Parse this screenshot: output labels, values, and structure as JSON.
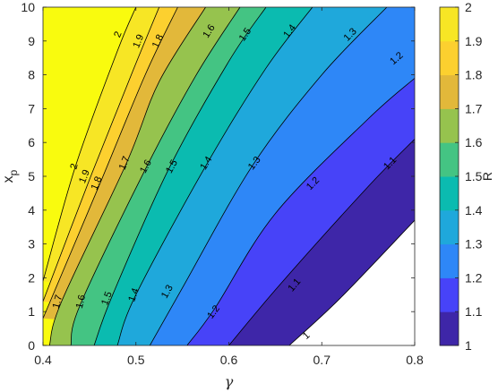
{
  "chart_data": {
    "type": "heatmap",
    "subtype": "filled-contour",
    "xlabel": "γ",
    "ylabel": "x_p",
    "colorbar_label": "R",
    "xlim": [
      0.4,
      0.8
    ],
    "ylim": [
      0,
      10
    ],
    "xticks": [
      "0.4",
      "0.5",
      "0.6",
      "0.7",
      "0.8"
    ],
    "yticks": [
      "0",
      "1",
      "2",
      "3",
      "4",
      "5",
      "6",
      "7",
      "8",
      "9",
      "10"
    ],
    "colorbar_ticks": [
      "1",
      "1.1",
      "1.2",
      "1.3",
      "1.4",
      "1.5",
      "1.6",
      "1.7",
      "1.8",
      "1.9",
      "2"
    ],
    "clim": [
      1,
      2
    ],
    "levels": [
      1,
      1.1,
      1.2,
      1.3,
      1.4,
      1.5,
      1.6,
      1.7,
      1.8,
      1.9,
      2
    ],
    "level_labels": [
      "1",
      "1.1",
      "1.2",
      "1.3",
      "1.4",
      "1.5",
      "1.6",
      "1.7",
      "1.8",
      "1.9",
      "2"
    ],
    "colormap": "parula",
    "colors": [
      "#3e26a8",
      "#4743f8",
      "#2e87f7",
      "#1fa8db",
      "#0bbbb0",
      "#44c483",
      "#96c34e",
      "#e2b83a",
      "#fcd02f",
      "#f7e625",
      "#f9fb0e"
    ],
    "contour_lines": [
      {
        "level": "2",
        "points": [
          [
            0.4,
            1.9
          ],
          [
            0.435,
            5.3
          ],
          [
            0.48,
            8.7
          ],
          [
            0.5,
            10
          ]
        ]
      },
      {
        "level": "1.9",
        "points": [
          [
            0.4,
            1.3
          ],
          [
            0.45,
            4.9
          ],
          [
            0.495,
            8.0
          ],
          [
            0.525,
            10
          ]
        ]
      },
      {
        "level": "1.8",
        "points": [
          [
            0.4,
            0.8
          ],
          [
            0.46,
            4.7
          ],
          [
            0.51,
            8.0
          ],
          [
            0.545,
            10
          ]
        ]
      },
      {
        "level": "1.7",
        "points": [
          [
            0.407,
            0
          ],
          [
            0.42,
            1.3
          ],
          [
            0.49,
            5.4
          ],
          [
            0.525,
            7.8
          ],
          [
            0.575,
            10
          ]
        ]
      },
      {
        "level": "1.6",
        "points": [
          [
            0.43,
            0
          ],
          [
            0.44,
            1.2
          ],
          [
            0.51,
            5.2
          ],
          [
            0.565,
            8.0
          ],
          [
            0.612,
            10
          ]
        ]
      },
      {
        "level": "1.5",
        "points": [
          [
            0.455,
            0
          ],
          [
            0.475,
            1.5
          ],
          [
            0.535,
            5.2
          ],
          [
            0.6,
            8.4
          ],
          [
            0.64,
            10
          ]
        ]
      },
      {
        "level": "1.4",
        "points": [
          [
            0.48,
            0
          ],
          [
            0.5,
            1.5
          ],
          [
            0.575,
            5.3
          ],
          [
            0.64,
            8.2
          ],
          [
            0.69,
            10
          ]
        ]
      },
      {
        "level": "1.3",
        "points": [
          [
            0.515,
            0
          ],
          [
            0.55,
            1.7
          ],
          [
            0.625,
            5.3
          ],
          [
            0.7,
            8.0
          ],
          [
            0.77,
            10
          ]
        ]
      },
      {
        "level": "1.2",
        "points": [
          [
            0.555,
            0
          ],
          [
            0.585,
            1.1
          ],
          [
            0.65,
            3.9
          ],
          [
            0.75,
            6.7
          ],
          [
            0.8,
            7.9
          ]
        ]
      },
      {
        "level": "1.1",
        "points": [
          [
            0.6,
            0
          ],
          [
            0.655,
            1.8
          ],
          [
            0.75,
            4.7
          ],
          [
            0.8,
            6.1
          ]
        ]
      },
      {
        "level": "1",
        "points": [
          [
            0.665,
            0
          ],
          [
            0.72,
            1.4
          ],
          [
            0.8,
            3.7
          ]
        ]
      }
    ],
    "contour_label_positions": [
      {
        "level": "2",
        "x": 0.433,
        "y": 5.3
      },
      {
        "level": "2",
        "x": 0.48,
        "y": 9.2
      },
      {
        "level": "1.9",
        "x": 0.444,
        "y": 5.0
      },
      {
        "level": "1.9",
        "x": 0.502,
        "y": 9.0
      },
      {
        "level": "1.8",
        "x": 0.457,
        "y": 4.8
      },
      {
        "level": "1.8",
        "x": 0.523,
        "y": 9.0
      },
      {
        "level": "1.7",
        "x": 0.415,
        "y": 1.3
      },
      {
        "level": "1.7",
        "x": 0.487,
        "y": 5.4
      },
      {
        "level": "1.6",
        "x": 0.44,
        "y": 1.3
      },
      {
        "level": "1.6",
        "x": 0.51,
        "y": 5.3
      },
      {
        "level": "1.6",
        "x": 0.578,
        "y": 9.3
      },
      {
        "level": "1.5",
        "x": 0.468,
        "y": 1.4
      },
      {
        "level": "1.5",
        "x": 0.538,
        "y": 5.3
      },
      {
        "level": "1.5",
        "x": 0.617,
        "y": 9.2
      },
      {
        "level": "1.4",
        "x": 0.497,
        "y": 1.5
      },
      {
        "level": "1.4",
        "x": 0.575,
        "y": 5.4
      },
      {
        "level": "1.4",
        "x": 0.665,
        "y": 9.3
      },
      {
        "level": "1.3",
        "x": 0.533,
        "y": 1.6
      },
      {
        "level": "1.3",
        "x": 0.627,
        "y": 5.4
      },
      {
        "level": "1.3",
        "x": 0.73,
        "y": 9.2
      },
      {
        "level": "1.2",
        "x": 0.583,
        "y": 1.0
      },
      {
        "level": "1.2",
        "x": 0.69,
        "y": 4.8
      },
      {
        "level": "1.2",
        "x": 0.78,
        "y": 8.5
      },
      {
        "level": "1.1",
        "x": 0.67,
        "y": 1.8
      },
      {
        "level": "1.1",
        "x": 0.773,
        "y": 5.4
      },
      {
        "level": "1",
        "x": 0.683,
        "y": 0.3
      }
    ]
  }
}
